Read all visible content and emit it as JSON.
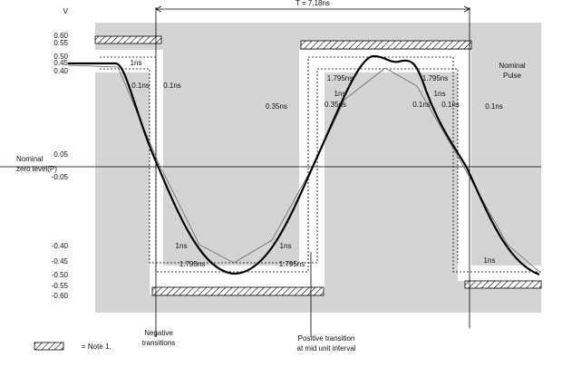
{
  "axis_unit": "V",
  "levels": [
    "0.60",
    "0.55",
    "0.50",
    "0.45",
    "0.40",
    "0.05",
    "-0.05",
    "-0.40",
    "-0.45",
    "-0.50",
    "-0.55",
    "-0.60"
  ],
  "period": "T = 7.18ns",
  "annotations": [
    "1ns",
    "0.1ns",
    "0.1ns",
    "0.35ns",
    "1.795ns",
    "1ns",
    "0.35ns",
    "1.795ns",
    "1ns",
    "0.1ns",
    "0.1ns",
    "0.1ns",
    "1ns",
    "1ns",
    "1.795ns",
    "1.795ns",
    "1ns"
  ],
  "nominal_zero": [
    "Nominal",
    "zero level(P)"
  ],
  "nominal_pulse": [
    "Nominal",
    "Pulse"
  ],
  "negative_transitions": [
    "Negative",
    "transitions"
  ],
  "positive_transition": [
    "Positive transition",
    "at mid unit interval"
  ],
  "legend": "= Note 1."
}
